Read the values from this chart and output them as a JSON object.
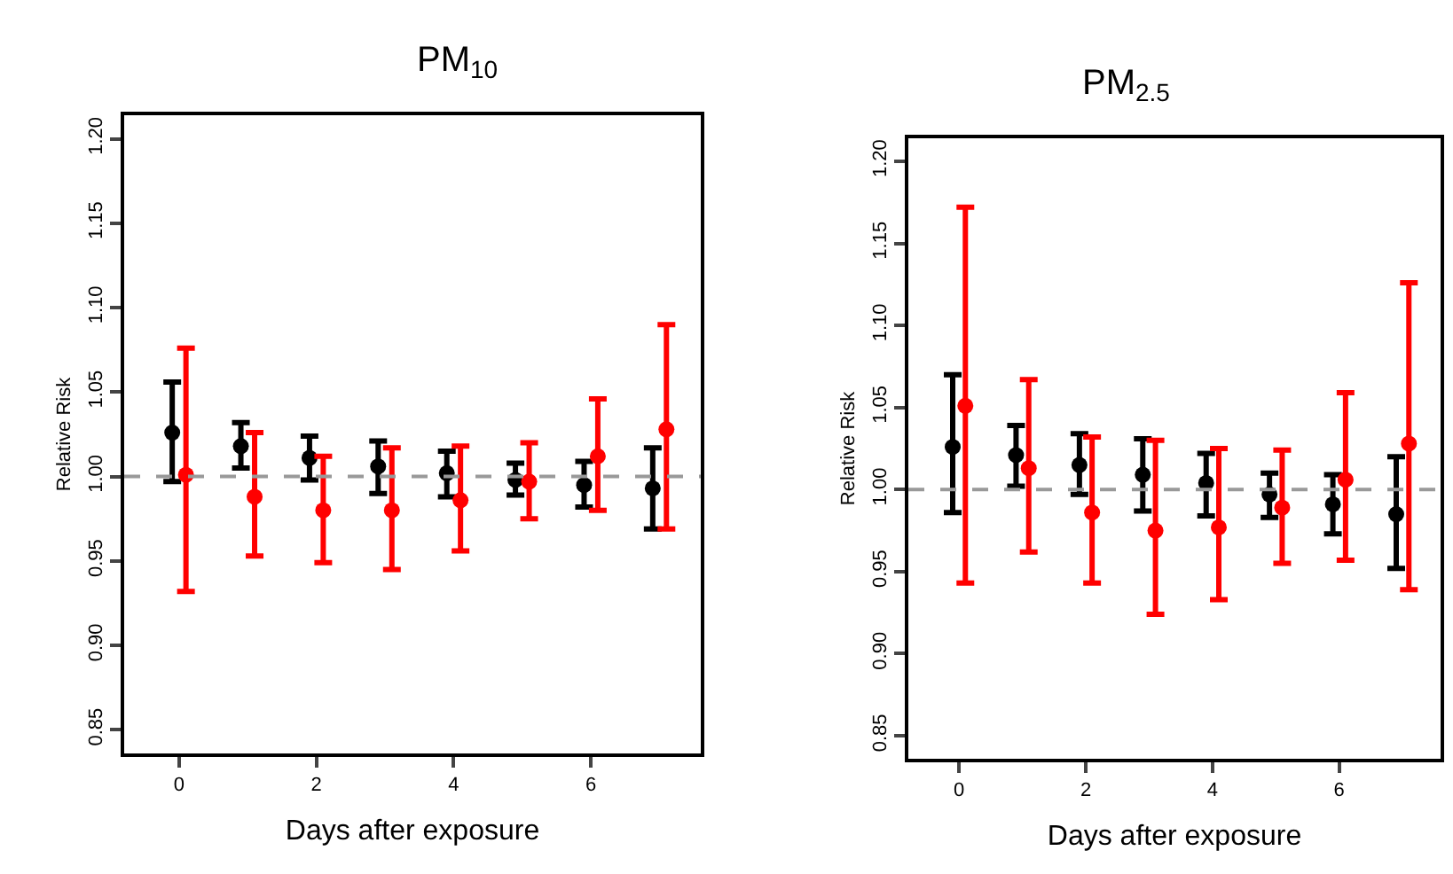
{
  "chart_data": [
    {
      "type": "scatter",
      "title": "PM$_{10}$",
      "xlabel": "Days after exposure",
      "ylabel": "Relative Risk",
      "xlim": [
        -0.8,
        7.6
      ],
      "xticks": [
        0,
        2,
        4,
        6
      ],
      "ylim": [
        0.836,
        1.214
      ],
      "yticks": [
        {
          "value": 0.85,
          "label": "0.85"
        },
        {
          "value": 0.9,
          "label": "0.90"
        },
        {
          "value": 0.95,
          "label": "0.95"
        },
        {
          "value": 1.0,
          "label": "1.00"
        },
        {
          "value": 1.05,
          "label": "1.05"
        },
        {
          "value": 1.1,
          "label": "1.10"
        },
        {
          "value": 1.15,
          "label": "1.15"
        },
        {
          "value": 1.2,
          "label": "1.20"
        }
      ],
      "marker": "circle",
      "ref_lines": [
        {
          "axis": "y",
          "value": 1.0,
          "color": "#999999",
          "line_style": "dashed"
        }
      ],
      "series": [
        {
          "color": "#000000",
          "x": [
            -0.1,
            0.9,
            1.9,
            2.9,
            3.9,
            4.9,
            5.9,
            6.9
          ],
          "values": [
            1.026,
            1.018,
            1.011,
            1.006,
            1.002,
            0.998,
            0.995,
            0.993
          ],
          "errors": [
            [
              0.997,
              1.056
            ],
            [
              1.005,
              1.032
            ],
            [
              0.998,
              1.024
            ],
            [
              0.99,
              1.021
            ],
            [
              0.988,
              1.015
            ],
            [
              0.989,
              1.008
            ],
            [
              0.982,
              1.009
            ],
            [
              0.969,
              1.017
            ]
          ]
        },
        {
          "color": "#ff0000",
          "x": [
            0.1,
            1.1,
            2.1,
            3.1,
            4.1,
            5.1,
            6.1,
            7.1
          ],
          "values": [
            1.001,
            0.988,
            0.98,
            0.98,
            0.986,
            0.997,
            1.012,
            1.028
          ],
          "errors": [
            [
              0.932,
              1.076
            ],
            [
              0.953,
              1.026
            ],
            [
              0.949,
              1.012
            ],
            [
              0.945,
              1.017
            ],
            [
              0.956,
              1.018
            ],
            [
              0.975,
              1.02
            ],
            [
              0.98,
              1.046
            ],
            [
              0.969,
              1.09
            ]
          ]
        }
      ]
    },
    {
      "type": "scatter",
      "title": "PM$_{2.5}$",
      "xlabel": "Days after exposure",
      "ylabel": "Relative Risk",
      "xlim": [
        -0.8,
        7.6
      ],
      "xticks": [
        0,
        2,
        4,
        6
      ],
      "ylim": [
        0.836,
        1.214
      ],
      "yticks": [
        {
          "value": 0.85,
          "label": "0.85"
        },
        {
          "value": 0.9,
          "label": "0.90"
        },
        {
          "value": 0.95,
          "label": "0.95"
        },
        {
          "value": 1.0,
          "label": "1.00"
        },
        {
          "value": 1.05,
          "label": "1.05"
        },
        {
          "value": 1.1,
          "label": "1.10"
        },
        {
          "value": 1.15,
          "label": "1.15"
        },
        {
          "value": 1.2,
          "label": "1.20"
        }
      ],
      "marker": "circle",
      "ref_lines": [
        {
          "axis": "y",
          "value": 1.0,
          "color": "#999999",
          "line_style": "dashed"
        }
      ],
      "series": [
        {
          "color": "#000000",
          "x": [
            -0.1,
            0.9,
            1.9,
            2.9,
            3.9,
            4.9,
            5.9,
            6.9
          ],
          "values": [
            1.026,
            1.021,
            1.015,
            1.009,
            1.004,
            0.997,
            0.991,
            0.985
          ],
          "errors": [
            [
              0.986,
              1.07
            ],
            [
              1.002,
              1.039
            ],
            [
              0.997,
              1.034
            ],
            [
              0.987,
              1.031
            ],
            [
              0.984,
              1.022
            ],
            [
              0.983,
              1.01
            ],
            [
              0.973,
              1.009
            ],
            [
              0.952,
              1.02
            ]
          ]
        },
        {
          "color": "#ff0000",
          "x": [
            0.1,
            1.1,
            2.1,
            3.1,
            4.1,
            5.1,
            6.1,
            7.1
          ],
          "values": [
            1.051,
            1.013,
            0.986,
            0.975,
            0.977,
            0.989,
            1.006,
            1.028
          ],
          "errors": [
            [
              0.943,
              1.172
            ],
            [
              0.962,
              1.067
            ],
            [
              0.943,
              1.032
            ],
            [
              0.924,
              1.03
            ],
            [
              0.933,
              1.025
            ],
            [
              0.955,
              1.024
            ],
            [
              0.957,
              1.059
            ],
            [
              0.939,
              1.126
            ]
          ]
        }
      ]
    }
  ]
}
